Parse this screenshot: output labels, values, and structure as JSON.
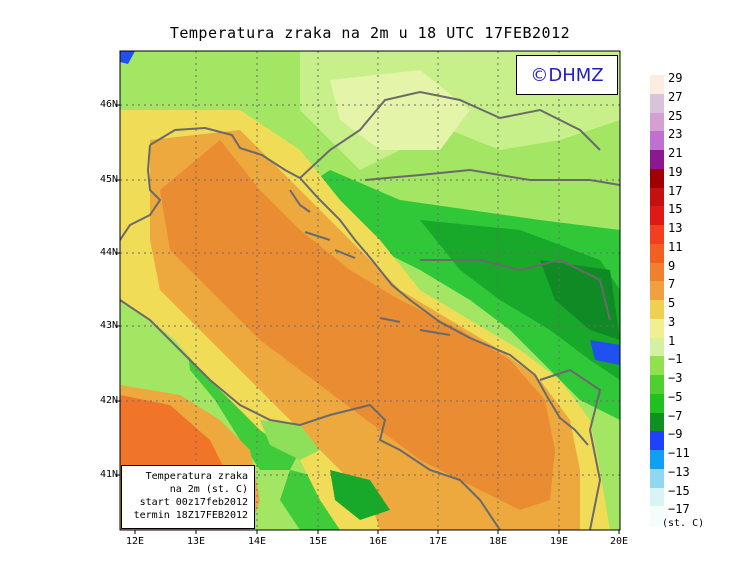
{
  "title": "Temperatura zraka na 2m u 18 UTC 17FEB2012",
  "credit": "©DHMZ",
  "info_box": {
    "line1": "Temperatura zraka",
    "line2": "na 2m (st. C)",
    "line3": "start 00z17feb2012",
    "line4": "termin 18Z17FEB2012"
  },
  "lat_labels": [
    "46N",
    "45N",
    "44N",
    "43N",
    "42N",
    "41N"
  ],
  "lon_labels": [
    "12E",
    "13E",
    "14E",
    "15E",
    "16E",
    "17E",
    "18E",
    "19E",
    "20E"
  ],
  "legend": {
    "units": "(st. C)",
    "labels": [
      "29",
      "27",
      "25",
      "23",
      "21",
      "19",
      "17",
      "15",
      "13",
      "11",
      "9",
      "7",
      "5",
      "3",
      "1",
      "−1",
      "−3",
      "−5",
      "−7",
      "−9",
      "−11",
      "−13",
      "−15",
      "−17"
    ],
    "colors": [
      "#fbeee0",
      "#d9c3d9",
      "#d4a0d4",
      "#c070d0",
      "#8c1890",
      "#a00000",
      "#c41010",
      "#e01818",
      "#f04020",
      "#f06020",
      "#f08030",
      "#f0a040",
      "#f0d050",
      "#f0f090",
      "#d4f0a0",
      "#90e050",
      "#50d030",
      "#20c020",
      "#109020",
      "#2040ff",
      "#10a0f0",
      "#90d8f0",
      "#d8f4f4",
      "#f4fcfc"
    ]
  },
  "colors": {
    "sea_warm": "#e98c32",
    "sea_mid": "#eda93e",
    "coast_yellow": "#f1dc58",
    "land_green": "#8ee05a",
    "land_dark_green": "#18b82e",
    "border": "#6a6a6a"
  }
}
